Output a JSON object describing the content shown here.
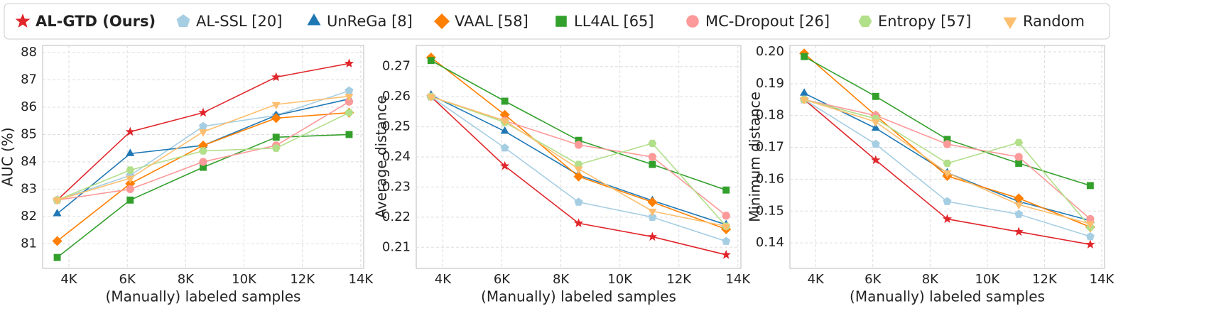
{
  "legend": [
    {
      "name": "AL-GTD (Ours)",
      "color": "#e0262b",
      "marker": "star"
    },
    {
      "name": "AL-SSL [20]",
      "color": "#a6cee3",
      "marker": "pentagon"
    },
    {
      "name": "UnReGa [8]",
      "color": "#1f78b4",
      "marker": "triangle"
    },
    {
      "name": "VAAL [58]",
      "color": "#ff7f00",
      "marker": "diamond"
    },
    {
      "name": "LL4AL [65]",
      "color": "#33a02c",
      "marker": "square"
    },
    {
      "name": "MC-Dropout [26]",
      "color": "#fb9a99",
      "marker": "circle"
    },
    {
      "name": "Entropy [57]",
      "color": "#b2df8a",
      "marker": "hexagon"
    },
    {
      "name": "Random",
      "color": "#fdbf6f",
      "marker": "triangle-down"
    }
  ],
  "chart_data": [
    {
      "type": "line",
      "xlabel": "(Manually) labeled samples",
      "ylabel": "AUC (%)",
      "grid": true,
      "x": [
        3600,
        6100,
        8600,
        11100,
        13600
      ],
      "xlim": [
        3100,
        14100
      ],
      "xticks": [
        {
          "value": 4000,
          "label": "4K"
        },
        {
          "value": 6000,
          "label": "6K"
        },
        {
          "value": 8000,
          "label": "8K"
        },
        {
          "value": 10000,
          "label": "10K"
        },
        {
          "value": 12000,
          "label": "12K"
        },
        {
          "value": 14000,
          "label": "14K"
        }
      ],
      "ylim": [
        80.1,
        88.26
      ],
      "yticks": [
        81,
        82,
        83,
        84,
        85,
        86,
        87,
        88
      ],
      "series": [
        {
          "values": [
            82.6,
            85.1,
            85.8,
            87.1,
            87.6
          ]
        },
        {
          "values": [
            82.6,
            83.5,
            85.3,
            85.7,
            86.6
          ]
        },
        {
          "values": [
            82.1,
            84.3,
            84.6,
            85.7,
            86.3
          ]
        },
        {
          "values": [
            81.1,
            83.2,
            84.6,
            85.6,
            85.8
          ]
        },
        {
          "values": [
            80.5,
            82.6,
            83.8,
            84.9,
            85.0
          ]
        },
        {
          "values": [
            82.6,
            83.0,
            84.0,
            84.6,
            86.2
          ]
        },
        {
          "values": [
            82.6,
            83.7,
            84.4,
            84.5,
            85.8
          ]
        },
        {
          "values": [
            82.6,
            83.4,
            85.1,
            86.1,
            86.4
          ]
        }
      ]
    },
    {
      "type": "line",
      "xlabel": "(Manually) labeled samples",
      "ylabel": "Average distance",
      "grid": true,
      "x": [
        3600,
        6100,
        8600,
        11100,
        13600
      ],
      "xlim": [
        3100,
        14100
      ],
      "xticks": [
        {
          "value": 4000,
          "label": "4K"
        },
        {
          "value": 6000,
          "label": "6K"
        },
        {
          "value": 8000,
          "label": "8K"
        },
        {
          "value": 10000,
          "label": "10K"
        },
        {
          "value": 12000,
          "label": "12K"
        },
        {
          "value": 14000,
          "label": "14K"
        }
      ],
      "ylim": [
        0.203,
        0.277
      ],
      "yticks": [
        0.21,
        0.22,
        0.23,
        0.24,
        0.25,
        0.26,
        0.27
      ],
      "series": [
        {
          "values": [
            0.26,
            0.237,
            0.218,
            0.2135,
            0.2075
          ]
        },
        {
          "values": [
            0.26,
            0.243,
            0.225,
            0.22,
            0.212
          ]
        },
        {
          "values": [
            0.2605,
            0.2485,
            0.234,
            0.2255,
            0.2175
          ]
        },
        {
          "values": [
            0.273,
            0.254,
            0.2335,
            0.225,
            0.216
          ]
        },
        {
          "values": [
            0.272,
            0.2585,
            0.2455,
            0.2375,
            0.229
          ]
        },
        {
          "values": [
            0.26,
            0.252,
            0.244,
            0.24,
            0.2205
          ]
        },
        {
          "values": [
            0.26,
            0.2515,
            0.2375,
            0.2445,
            0.217
          ]
        },
        {
          "values": [
            0.26,
            0.252,
            0.236,
            0.222,
            0.217
          ]
        }
      ]
    },
    {
      "type": "line",
      "xlabel": "(Manually) labeled samples",
      "ylabel": "Minimum distance",
      "grid": true,
      "x": [
        3600,
        6100,
        8600,
        11100,
        13600
      ],
      "xlim": [
        3100,
        14100
      ],
      "xticks": [
        {
          "value": 4000,
          "label": "4K"
        },
        {
          "value": 6000,
          "label": "6K"
        },
        {
          "value": 8000,
          "label": "8K"
        },
        {
          "value": 10000,
          "label": "10K"
        },
        {
          "value": 12000,
          "label": "12K"
        },
        {
          "value": 14000,
          "label": "14K"
        }
      ],
      "ylim": [
        0.132,
        0.202
      ],
      "yticks": [
        0.14,
        0.15,
        0.16,
        0.17,
        0.18,
        0.19,
        {
          "value": 0.2,
          "label": "0.20"
        }
      ],
      "series": [
        {
          "values": [
            0.185,
            0.166,
            0.1475,
            0.1435,
            0.1395
          ]
        },
        {
          "values": [
            0.185,
            0.171,
            0.153,
            0.149,
            0.142
          ]
        },
        {
          "values": [
            0.187,
            0.176,
            0.162,
            0.153,
            0.147
          ]
        },
        {
          "values": [
            0.1995,
            0.18,
            0.161,
            0.154,
            0.145
          ]
        },
        {
          "values": [
            0.1985,
            0.186,
            0.1725,
            0.165,
            0.158
          ]
        },
        {
          "values": [
            0.185,
            0.18,
            0.171,
            0.167,
            0.1475
          ]
        },
        {
          "values": [
            0.185,
            0.179,
            0.165,
            0.1715,
            0.145
          ]
        },
        {
          "values": [
            0.185,
            0.178,
            0.162,
            0.152,
            0.146
          ]
        }
      ]
    }
  ]
}
